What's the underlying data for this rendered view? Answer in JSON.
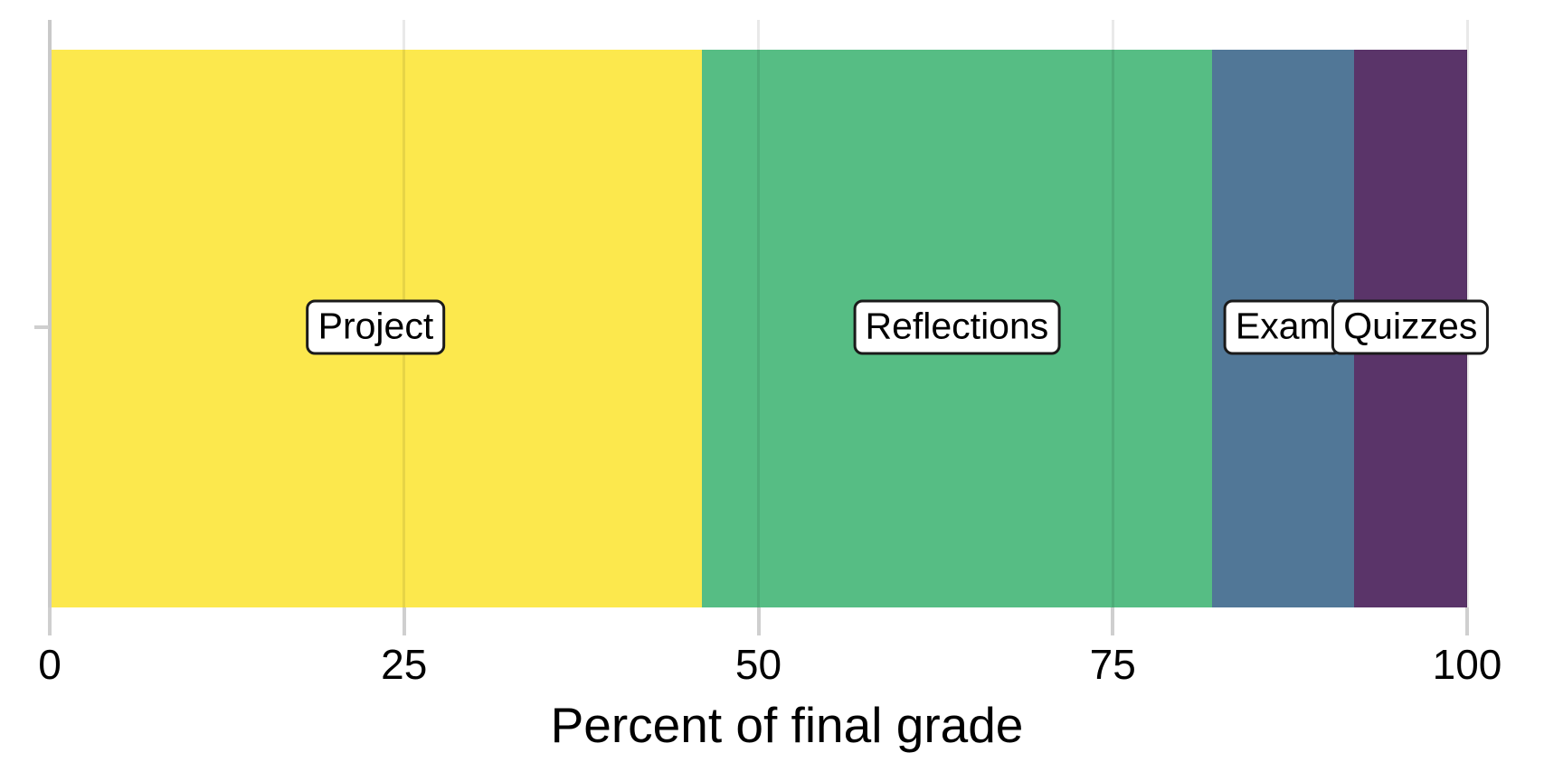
{
  "chart_data": {
    "type": "bar",
    "orientation": "horizontal-stacked",
    "title": "",
    "xlabel": "Percent of final grade",
    "ylabel": "",
    "xlim": [
      0,
      100
    ],
    "x_ticks": [
      0,
      25,
      50,
      75,
      100
    ],
    "grid": "vertical-light-gridlines",
    "legend": "none",
    "background": "#FFFFFF",
    "axis_color": "#C9C9C9",
    "categories": [
      "Project",
      "Reflections",
      "Exam",
      "Quizzes"
    ],
    "values": [
      46,
      36,
      10,
      8
    ],
    "segments": [
      {
        "name": "Project",
        "value": 46,
        "color": "#FCE84D"
      },
      {
        "name": "Reflections",
        "value": 36,
        "color": "#56BD84"
      },
      {
        "name": "Exam",
        "value": 10,
        "color": "#517797"
      },
      {
        "name": "Quizzes",
        "value": 8,
        "color": "#5A3469"
      }
    ],
    "segment_labels": [
      "Project",
      "Reflections",
      "Exam",
      "Quizzes"
    ],
    "label_box_style": {
      "fill": "#FFFFFF",
      "border": "#1A1A1A",
      "text": "#000000"
    }
  }
}
